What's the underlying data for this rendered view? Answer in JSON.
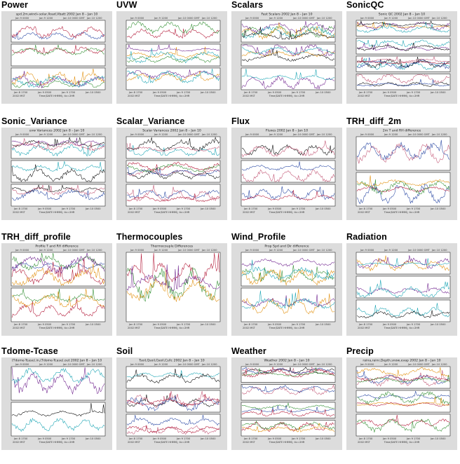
{
  "page": {
    "plots": [
      {
        "name": "Power",
        "header": "spd.2m,wind+solar,Iload,Vbatt 2002 Jan 8 – Jan 10",
        "subplots": 3
      },
      {
        "name": "UVW",
        "header": "",
        "subplots": 3
      },
      {
        "name": "Scalars",
        "header": "Fast Scalars 2002 Jan 8 – Jan 10",
        "subplots": 3
      },
      {
        "name": "SonicQC",
        "header": "Sonic QC 2002 Jan 8 – Jan 10",
        "subplots": 4
      },
      {
        "name": "Sonic_Variance",
        "header": "uvw Variances 2002 Jan 8 – Jan 10",
        "subplots": 3
      },
      {
        "name": "Scalar_Variance",
        "header": "Scalar Variances 2002 Jan 8 – Jan 10",
        "subplots": 3
      },
      {
        "name": "Flux",
        "header": "Fluxes 2002 Jan 8 – Jan 10",
        "subplots": 3
      },
      {
        "name": "TRH_diff_2m",
        "header": "2m T and RH difference",
        "subplots": 2
      },
      {
        "name": "TRH_diff_profile",
        "header": "Profile T and RH difference",
        "subplots": 2
      },
      {
        "name": "Thermocouples",
        "header": "Thermocouple Differences",
        "subplots": 1
      },
      {
        "name": "Wind_Profile",
        "header": "Prop Spd and Dir difference",
        "subplots": 2
      },
      {
        "name": "Radiation",
        "header": "",
        "subplots": 3
      },
      {
        "name": "Tdome-Tcase",
        "header": "(Tdome-Tcase).in,(Tdome-Tcase).out 2002 Jan 8 – Jan 10",
        "subplots": 2
      },
      {
        "name": "Soil",
        "header": "Tsoil,Qsoil,Gsoil,Cs/lc 2002 Jan 8 – Jan 10",
        "subplots": 3
      },
      {
        "name": "Weather",
        "header": "Weather 2002 Jan 8 – Jan 10",
        "subplots": 4
      },
      {
        "name": "Precip",
        "header": "raina,rainr,Depth.snow,evap 2002 Jan 8 – Jan 10",
        "subplots": 3
      }
    ],
    "time_axis": {
      "top_ticks": [
        "Jan  9 0000",
        "Jan  9 1200",
        "Jan 10 0000 GMT",
        "Jan 10 1200"
      ],
      "bottom_ticks": [
        "Jan  8 1700",
        "Jan  9 0500",
        "Jan  9 1700",
        "Jan 10 0500"
      ],
      "year_label": "2002 MST",
      "xlabel": "Time(DATE HHMM), tic=2HR"
    }
  }
}
